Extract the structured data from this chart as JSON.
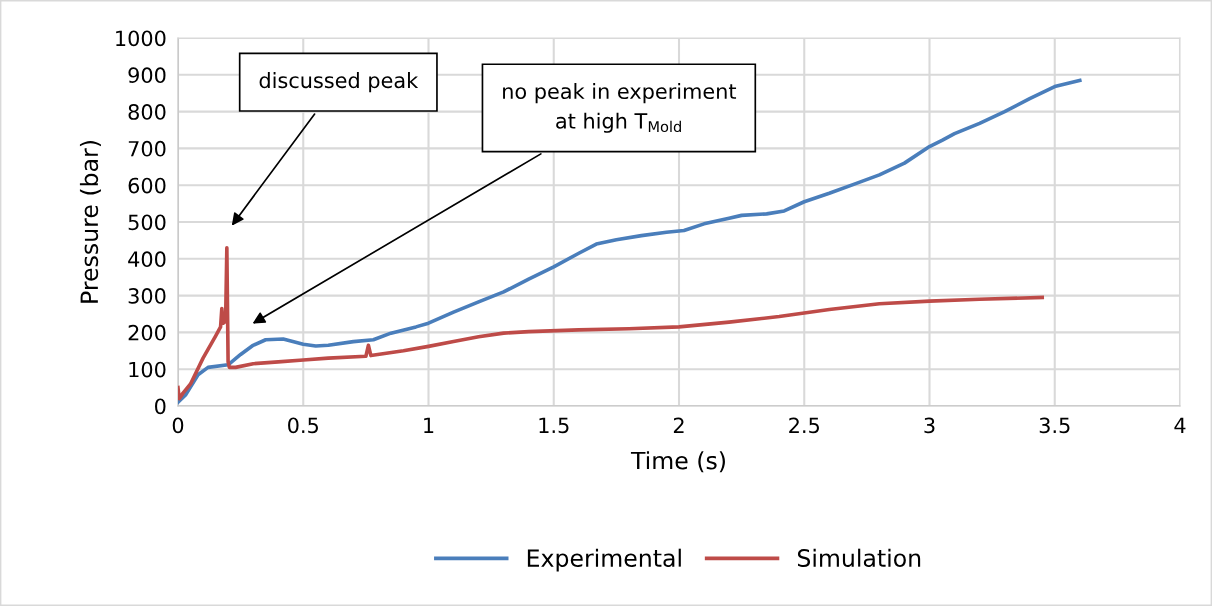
{
  "chart_data": {
    "type": "line",
    "xlabel": "Time (s)",
    "ylabel": "Pressure (bar)",
    "xlim": [
      0,
      4
    ],
    "xticks": [
      0,
      0.5,
      1,
      1.5,
      2,
      2.5,
      3,
      3.5,
      4
    ],
    "ylim": [
      0,
      1000
    ],
    "yticks": [
      0,
      100,
      200,
      300,
      400,
      500,
      600,
      700,
      800,
      900,
      1000
    ],
    "grid": true,
    "legend": "bottom",
    "marker": "none",
    "line_style": "solid",
    "annotations": [
      "discussed peak",
      "no peak in experiment\nat high T$_{Mold}$"
    ],
    "series": [
      {
        "name": "Experimental",
        "color": "#4a7ebb",
        "x": [
          0,
          0.03,
          0.08,
          0.12,
          0.2,
          0.25,
          0.3,
          0.35,
          0.42,
          0.5,
          0.55,
          0.6,
          0.7,
          0.78,
          0.85,
          0.95,
          1.0,
          1.1,
          1.2,
          1.3,
          1.4,
          1.5,
          1.6,
          1.67,
          1.75,
          1.85,
          1.95,
          2.02,
          2.1,
          2.2,
          2.25,
          2.35,
          2.42,
          2.5,
          2.6,
          2.7,
          2.8,
          2.9,
          3.0,
          3.05,
          3.1,
          3.2,
          3.3,
          3.4,
          3.5,
          3.6
        ],
        "values": [
          10,
          30,
          85,
          105,
          112,
          140,
          165,
          180,
          182,
          168,
          163,
          165,
          175,
          180,
          198,
          215,
          225,
          255,
          283,
          310,
          345,
          378,
          415,
          440,
          452,
          463,
          472,
          477,
          495,
          510,
          518,
          522,
          530,
          555,
          578,
          603,
          628,
          660,
          705,
          722,
          740,
          768,
          800,
          835,
          868,
          885
        ]
      },
      {
        "name": "Simulation",
        "color": "#be4b48",
        "x": [
          0,
          0.005,
          0.02,
          0.05,
          0.1,
          0.15,
          0.17,
          0.175,
          0.18,
          0.19,
          0.195,
          0.2,
          0.205,
          0.23,
          0.3,
          0.4,
          0.5,
          0.6,
          0.75,
          0.76,
          0.77,
          0.9,
          1.0,
          1.1,
          1.2,
          1.3,
          1.4,
          1.6,
          1.8,
          2.0,
          2.2,
          2.4,
          2.6,
          2.8,
          3.0,
          3.2,
          3.45
        ],
        "values": [
          50,
          20,
          35,
          60,
          130,
          190,
          215,
          265,
          225,
          230,
          430,
          120,
          105,
          105,
          115,
          120,
          125,
          130,
          135,
          165,
          137,
          150,
          162,
          175,
          188,
          198,
          202,
          207,
          210,
          215,
          228,
          243,
          262,
          278,
          285,
          290,
          295
        ]
      }
    ]
  }
}
